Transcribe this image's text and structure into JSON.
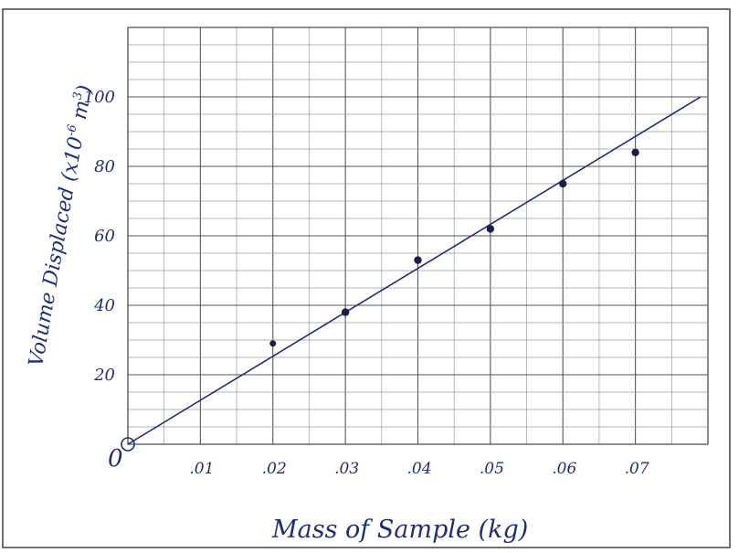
{
  "chart_data": {
    "type": "scatter",
    "title": "",
    "xlabel": "Mass of Sample (kg)",
    "ylabel": "Volume Displaced (x10^-6 m^3)",
    "ylabel_parts": {
      "main": "Volume Displaced (x10",
      "exp": "-6",
      "unit": " m",
      "unit_exp": "3",
      "close": ")"
    },
    "xlim": [
      0,
      0.08
    ],
    "ylim": [
      0,
      120
    ],
    "grid": true,
    "origin_label": "0",
    "x_ticks": [
      {
        "value": 0.01,
        "label": ".01"
      },
      {
        "value": 0.02,
        "label": ".02"
      },
      {
        "value": 0.03,
        "label": ".03"
      },
      {
        "value": 0.04,
        "label": ".04"
      },
      {
        "value": 0.05,
        "label": ".05"
      },
      {
        "value": 0.06,
        "label": ".06"
      },
      {
        "value": 0.07,
        "label": ".07"
      }
    ],
    "y_ticks": [
      {
        "value": 20,
        "label": "20"
      },
      {
        "value": 40,
        "label": "40"
      },
      {
        "value": 60,
        "label": "60"
      },
      {
        "value": 80,
        "label": "80"
      },
      {
        "value": 100,
        "label": "100"
      }
    ],
    "series": [
      {
        "x": [
          0.0,
          0.02,
          0.03,
          0.04,
          0.05,
          0.06,
          0.07
        ],
        "y": [
          0,
          29,
          38,
          53,
          62,
          75,
          84
        ]
      }
    ],
    "fit_line": {
      "x": [
        0,
        0.079
      ],
      "y": [
        0,
        100
      ]
    },
    "colors": {
      "ink": "#1f2f73",
      "point": "#1a1f4a",
      "grid_major": "#555555",
      "grid_minor": "#9a9a9a",
      "border": "#444444"
    }
  }
}
